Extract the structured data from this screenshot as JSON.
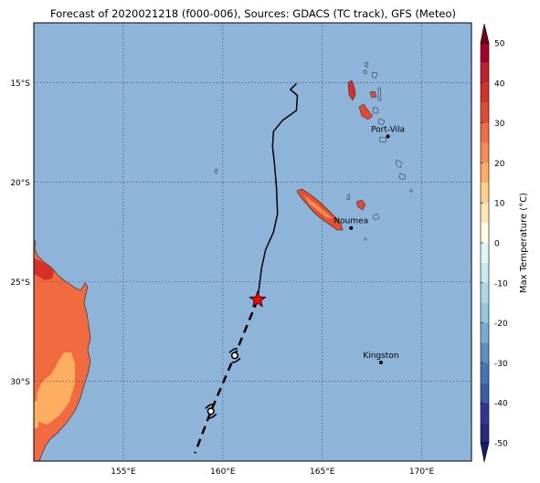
{
  "title": "Forecast of 2020021218 (f000-006), Sources: GDACS (TC track), GFS (Meteo)",
  "map": {
    "lon_range": [
      150.5,
      172.5
    ],
    "lat_range": [
      -34,
      -12
    ],
    "lat_ticks": [
      {
        "value": -15,
        "label": "15°S"
      },
      {
        "value": -20,
        "label": "20°S"
      },
      {
        "value": -25,
        "label": "25°S"
      },
      {
        "value": -30,
        "label": "30°S"
      }
    ],
    "lon_ticks": [
      {
        "value": 155,
        "label": "155°E"
      },
      {
        "value": 160,
        "label": "160°E"
      },
      {
        "value": 165,
        "label": "165°E"
      },
      {
        "value": 170,
        "label": "170°E"
      }
    ],
    "ocean_color": "#8fb4d9",
    "cities": [
      {
        "name": "Port-Vila",
        "lon": 168.3,
        "lat": -17.7
      },
      {
        "name": "Noumea",
        "lon": 166.45,
        "lat": -22.3
      },
      {
        "name": "Kingston",
        "lon": 167.95,
        "lat": -29.05
      }
    ],
    "track_past": [
      [
        163.7,
        -15.05
      ],
      [
        163.4,
        -15.35
      ],
      [
        163.75,
        -15.65
      ],
      [
        163.7,
        -16.4
      ],
      [
        163.0,
        -16.9
      ],
      [
        162.55,
        -17.45
      ],
      [
        162.5,
        -18.2
      ],
      [
        162.6,
        -19.1
      ],
      [
        162.7,
        -20.3
      ],
      [
        162.75,
        -21.6
      ],
      [
        162.55,
        -22.5
      ],
      [
        162.15,
        -23.4
      ],
      [
        161.95,
        -24.3
      ],
      [
        161.75,
        -25.9
      ]
    ],
    "storm_position": [
      161.75,
      -25.9
    ],
    "track_forecast": [
      [
        161.75,
        -25.9
      ],
      [
        160.6,
        -28.7
      ],
      [
        159.4,
        -31.5
      ],
      [
        158.6,
        -33.6
      ]
    ]
  },
  "colorbar": {
    "label": "Max Temperature (°C)",
    "ticks": [
      50,
      40,
      30,
      20,
      10,
      0,
      -10,
      -20,
      -30,
      -40,
      -50
    ],
    "levels": [
      {
        "from": 45,
        "to": 50,
        "color": "#a50026"
      },
      {
        "from": 40,
        "to": 45,
        "color": "#c1232b"
      },
      {
        "from": 35,
        "to": 40,
        "color": "#d73027"
      },
      {
        "from": 30,
        "to": 35,
        "color": "#e34a33"
      },
      {
        "from": 25,
        "to": 30,
        "color": "#f46d43"
      },
      {
        "from": 20,
        "to": 25,
        "color": "#f68d55"
      },
      {
        "from": 15,
        "to": 20,
        "color": "#fdae61"
      },
      {
        "from": 10,
        "to": 15,
        "color": "#fed18b"
      },
      {
        "from": 5,
        "to": 10,
        "color": "#fee8b4"
      },
      {
        "from": 0,
        "to": 5,
        "color": "#ffffe5"
      },
      {
        "from": -5,
        "to": 0,
        "color": "#e0f3f8"
      },
      {
        "from": -10,
        "to": -5,
        "color": "#c7e9f1"
      },
      {
        "from": -15,
        "to": -10,
        "color": "#abd9e9"
      },
      {
        "from": -20,
        "to": -15,
        "color": "#95c7df"
      },
      {
        "from": -25,
        "to": -20,
        "color": "#74add1"
      },
      {
        "from": -30,
        "to": -25,
        "color": "#5a8fc2"
      },
      {
        "from": -35,
        "to": -30,
        "color": "#4575b4"
      },
      {
        "from": -40,
        "to": -35,
        "color": "#3b5ea8"
      },
      {
        "from": -45,
        "to": -40,
        "color": "#313695"
      },
      {
        "from": -50,
        "to": -45,
        "color": "#262a80"
      }
    ],
    "extend_top_color": "#7a0018",
    "extend_bottom_color": "#1a1d6a"
  }
}
